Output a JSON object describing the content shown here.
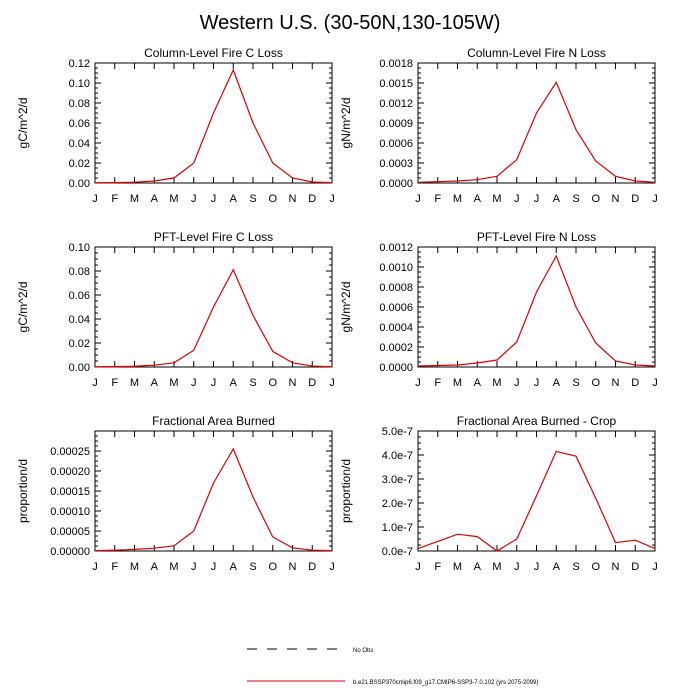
{
  "page": {
    "title": "Western U.S. (30-50N,130-105W)"
  },
  "colors": {
    "model_line": "#e00000",
    "obs_line": "#000000",
    "axes": "#000000"
  },
  "legend": {
    "obs_label": "No Obs",
    "model_label": "b.e21.BSSP370cmip6.f09_g17.CMIP6-SSP3-7.0.102 (yrs 2075-2099)"
  },
  "chart_data": [
    {
      "type": "line",
      "title": "Column-Level Fire C Loss",
      "ylabel": "gC/m^2/d",
      "categories": [
        "J",
        "F",
        "M",
        "A",
        "M",
        "J",
        "J",
        "A",
        "S",
        "O",
        "N",
        "D",
        "J"
      ],
      "ylim": [
        0,
        0.12
      ],
      "yticks": [
        "0.00",
        "0.02",
        "0.04",
        "0.06",
        "0.08",
        "0.10",
        "0.12"
      ],
      "series": [
        {
          "values": [
            0.0003,
            0.0004,
            0.0008,
            0.002,
            0.005,
            0.02,
            0.07,
            0.113,
            0.06,
            0.02,
            0.005,
            0.001,
            0.0003
          ]
        }
      ]
    },
    {
      "type": "line",
      "title": "Column-Level Fire N Loss",
      "ylabel": "gN/m^2/d",
      "categories": [
        "J",
        "F",
        "M",
        "A",
        "M",
        "J",
        "J",
        "A",
        "S",
        "O",
        "N",
        "D",
        "J"
      ],
      "ylim": [
        0,
        0.0018
      ],
      "yticks": [
        "0.0000",
        "0.0003",
        "0.0006",
        "0.0009",
        "0.0012",
        "0.0015",
        "0.0018"
      ],
      "series": [
        {
          "values": [
            1e-05,
            2e-05,
            3e-05,
            5e-05,
            0.0001,
            0.00035,
            0.00105,
            0.00151,
            0.0008,
            0.00033,
            0.0001,
            3e-05,
            1e-05
          ]
        }
      ]
    },
    {
      "type": "line",
      "title": "PFT-Level Fire C Loss",
      "ylabel": "gC/m^2/d",
      "categories": [
        "J",
        "F",
        "M",
        "A",
        "M",
        "J",
        "J",
        "A",
        "S",
        "O",
        "N",
        "D",
        "J"
      ],
      "ylim": [
        0,
        0.1
      ],
      "yticks": [
        "0.00",
        "0.02",
        "0.04",
        "0.06",
        "0.08",
        "0.10"
      ],
      "series": [
        {
          "values": [
            0.0002,
            0.0003,
            0.0006,
            0.0015,
            0.0035,
            0.014,
            0.05,
            0.081,
            0.043,
            0.013,
            0.0035,
            0.0008,
            0.0002
          ]
        }
      ]
    },
    {
      "type": "line",
      "title": "PFT-Level Fire N Loss",
      "ylabel": "gN/m^2/d",
      "categories": [
        "J",
        "F",
        "M",
        "A",
        "M",
        "J",
        "J",
        "A",
        "S",
        "O",
        "N",
        "D",
        "J"
      ],
      "ylim": [
        0,
        0.0012
      ],
      "yticks": [
        "0.0000",
        "0.0002",
        "0.0004",
        "0.0006",
        "0.0008",
        "0.0010",
        "0.0012"
      ],
      "series": [
        {
          "values": [
            1e-05,
            1.5e-05,
            2e-05,
            4e-05,
            7e-05,
            0.00025,
            0.00075,
            0.00111,
            0.0006,
            0.00024,
            6e-05,
            2e-05,
            1e-05
          ]
        }
      ]
    },
    {
      "type": "line",
      "title": "Fractional Area Burned",
      "ylabel": "proportion/d",
      "categories": [
        "J",
        "F",
        "M",
        "A",
        "M",
        "J",
        "J",
        "A",
        "S",
        "O",
        "N",
        "D",
        "J"
      ],
      "ylim": [
        0,
        0.0003
      ],
      "yticks": [
        "0.00000",
        "0.00005",
        "0.00010",
        "0.00015",
        "0.00020",
        "0.00025"
      ],
      "series": [
        {
          "values": [
            1e-06,
            2e-06,
            4e-06,
            7e-06,
            1.3e-05,
            5e-05,
            0.00017,
            0.000255,
            0.000135,
            3.5e-05,
            8e-06,
            2e-06,
            1e-06
          ]
        }
      ]
    },
    {
      "type": "line",
      "title": "Fractional Area Burned - Crop",
      "ylabel": "proportion/d",
      "categories": [
        "J",
        "F",
        "M",
        "A",
        "M",
        "J",
        "J",
        "A",
        "S",
        "O",
        "N",
        "D",
        "J"
      ],
      "ylim": [
        0,
        5e-07
      ],
      "yticks": [
        "0.0e-7",
        "1.0e-7",
        "2.0e-7",
        "3.0e-7",
        "4.0e-7",
        "5.0e-7"
      ],
      "series": [
        {
          "values": [
            1e-08,
            4e-08,
            7e-08,
            6e-08,
            0.0,
            5e-08,
            2.3e-07,
            4.15e-07,
            3.95e-07,
            2.2e-07,
            3.5e-08,
            4.5e-08,
            1e-08
          ]
        }
      ]
    }
  ]
}
